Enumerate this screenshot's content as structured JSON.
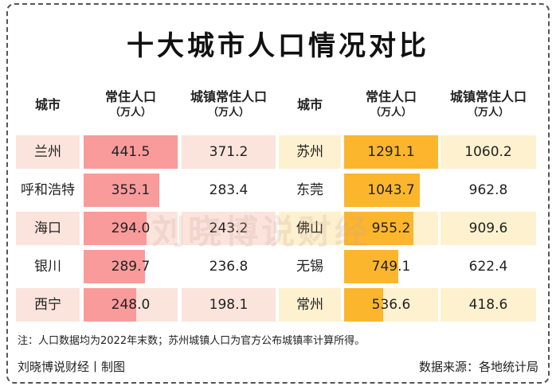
{
  "title": "十大城市人口情况对比",
  "headers": {
    "city": "城市",
    "pop": "常住人口",
    "urban": "城镇常住人口",
    "unit": "（万人）"
  },
  "chart_data": {
    "type": "table",
    "title": "十大城市人口情况对比",
    "columns": [
      "城市",
      "常住人口（万人）",
      "城镇常住人口（万人）"
    ],
    "left": [
      {
        "city": "兰州",
        "pop": "441.5",
        "urban": "371.2"
      },
      {
        "city": "呼和浩特",
        "pop": "355.1",
        "urban": "283.4"
      },
      {
        "city": "海口",
        "pop": "294.0",
        "urban": "243.2"
      },
      {
        "city": "银川",
        "pop": "289.7",
        "urban": "236.8"
      },
      {
        "city": "西宁",
        "pop": "248.0",
        "urban": "198.1"
      }
    ],
    "right": [
      {
        "city": "苏州",
        "pop": "1291.1",
        "urban": "1060.2"
      },
      {
        "city": "东莞",
        "pop": "1043.7",
        "urban": "962.8"
      },
      {
        "city": "佛山",
        "pop": "955.2",
        "urban": "909.6"
      },
      {
        "city": "无锡",
        "pop": "749.1",
        "urban": "622.4"
      },
      {
        "city": "常州",
        "pop": "536.6",
        "urban": "418.6"
      }
    ]
  },
  "colors": {
    "left_bar": "#f99b9b",
    "left_stripe": "#fbe4dc",
    "right_bar": "#fbb62e",
    "right_stripe": "#fdf1cf"
  },
  "watermark": "刘晓博说财经",
  "note": "注：人口数据均为2022年末数；苏州城镇人口为官方公布城镇率计算所得。",
  "credit": "刘晓博说财经丨制图",
  "source": "数据来源：各地统计局"
}
